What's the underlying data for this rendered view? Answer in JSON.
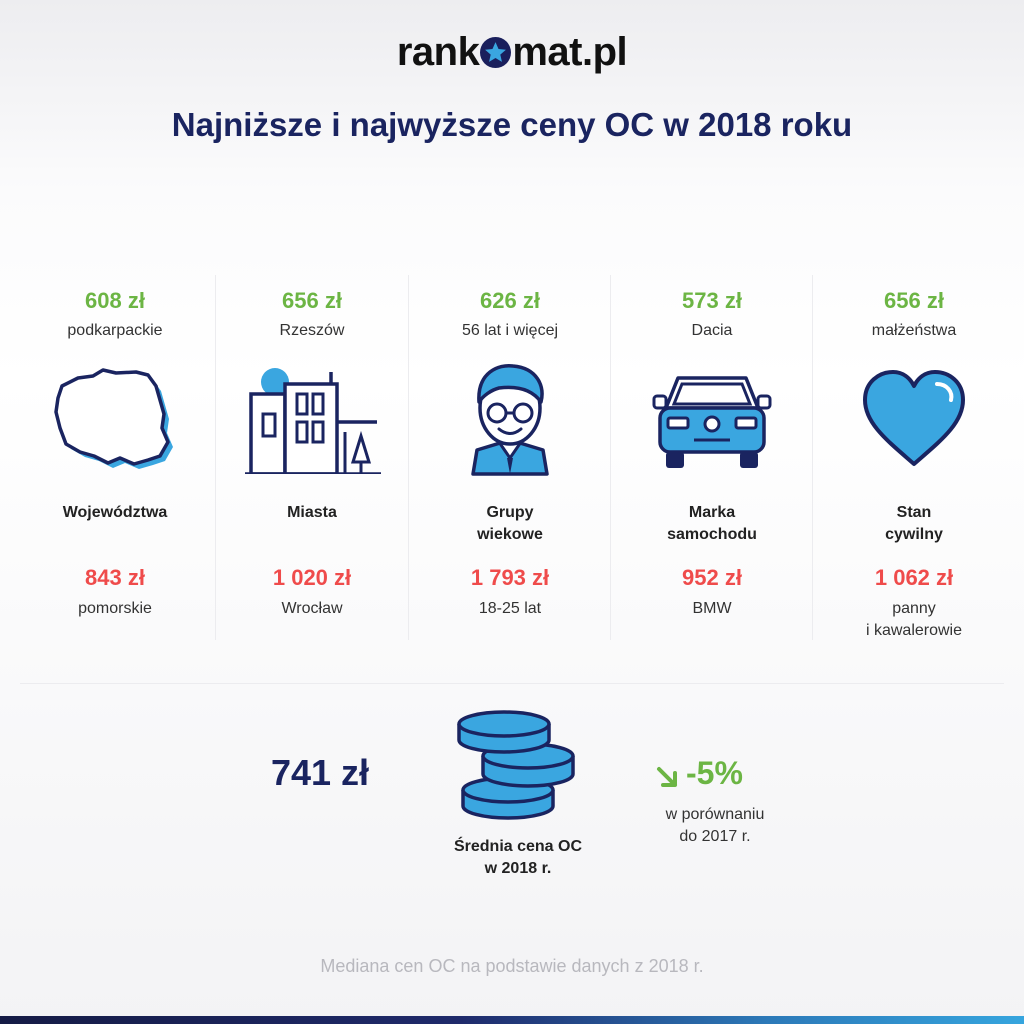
{
  "header": {
    "logo_prefix": "rank",
    "logo_suffix": "mat.pl",
    "title": "Najniższe i najwyższe ceny OC w 2018 roku"
  },
  "columns": [
    {
      "lowest_price": "608 zł",
      "lowest_label": "podkarpackie",
      "icon": "poland-map-icon",
      "category": "Województwa",
      "highest_price": "843 zł",
      "highest_label": "pomorskie"
    },
    {
      "lowest_price": "656 zł",
      "lowest_label": "Rzeszów",
      "icon": "city-buildings-icon",
      "category": "Miasta",
      "highest_price": "1 020 zł",
      "highest_label": "Wrocław"
    },
    {
      "lowest_price": "626 zł",
      "lowest_label": "56 lat i więcej",
      "icon": "man-glasses-icon",
      "category": "Grupy\nwiekowe",
      "highest_price": "1 793 zł",
      "highest_label": "18-25 lat"
    },
    {
      "lowest_price": "573 zł",
      "lowest_label": "Dacia",
      "icon": "car-front-icon",
      "category": "Marka\nsamochodu",
      "highest_price": "952 zł",
      "highest_label": "BMW"
    },
    {
      "lowest_price": "656 zł",
      "lowest_label": "małżeństwa",
      "icon": "heart-icon",
      "category": "Stan\ncywilny",
      "highest_price": "1 062 zł",
      "highest_label": "panny\ni kawalerowie"
    }
  ],
  "summary": {
    "average_price": "741 zł",
    "average_label": "Średnia cena OC\nw 2018 r.",
    "change": "-5%",
    "change_label": "w porównaniu\ndo 2017 r.",
    "coins_icon": "coins-stack-icon",
    "arrow_icon": "arrow-down-right-icon"
  },
  "footnote": "Mediana cen OC na podstawie danych z 2018 r.",
  "colors": {
    "navy": "#1a2460",
    "green": "#6cb544",
    "red": "#ef4b4b",
    "accent_blue": "#3aa6e0"
  }
}
